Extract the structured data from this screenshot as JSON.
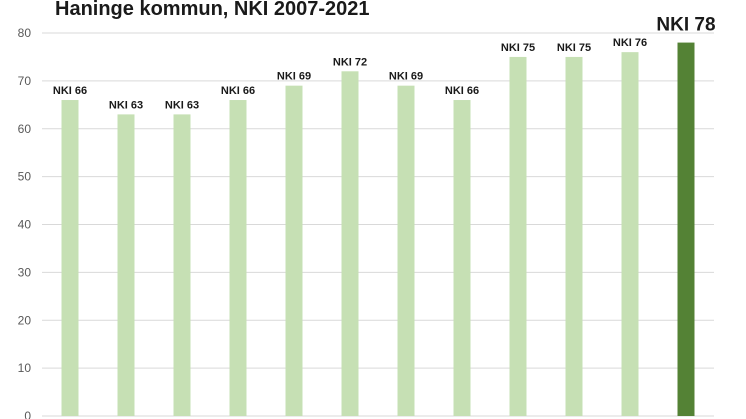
{
  "chart_data": {
    "type": "bar",
    "title": "Haninge kommun, NKI 2007-2021",
    "xlabel": "",
    "ylabel": "",
    "ylim": [
      0,
      80
    ],
    "yticks": [
      0,
      10,
      20,
      30,
      40,
      50,
      60,
      70,
      80
    ],
    "grid": true,
    "values": [
      66,
      63,
      63,
      66,
      69,
      72,
      69,
      66,
      75,
      75,
      76,
      78
    ],
    "data_labels": [
      "NKI 66",
      "NKI 63",
      "NKI 63",
      "NKI 66",
      "NKI 69",
      "NKI 72",
      "NKI 69",
      "NKI 66",
      "NKI 75",
      "NKI 75",
      "NKI 76",
      "NKI 78"
    ],
    "highlight_index": 11,
    "colors": {
      "bar": "#c6e0b4",
      "highlight": "#548235",
      "grid": "#d9d9d9",
      "axis_text": "#595959"
    }
  }
}
